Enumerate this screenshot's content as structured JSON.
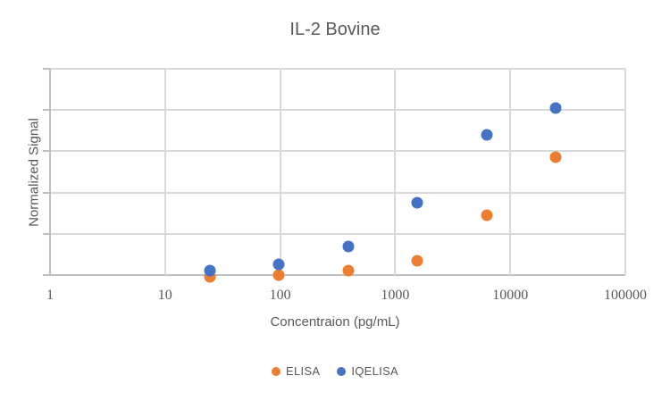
{
  "chart_data": {
    "type": "scatter",
    "title": "IL-2 Bovine",
    "xlabel": "Concentraion (pg/mL)",
    "ylabel": "Normalized Signal",
    "x_scale": "log10",
    "xlim": [
      1,
      100000
    ],
    "x_tick_labels": [
      "1",
      "10",
      "100",
      "1000",
      "10000",
      "100000"
    ],
    "ylim": [
      0,
      1
    ],
    "y_divisions": 5,
    "y_tick_labels_visible": false,
    "grid": true,
    "legend_position": "bottom-center",
    "colors": {
      "gridline": "#D9D9D9",
      "axis": "#BFBFBF",
      "text": "#595959",
      "background": "#FFFFFF"
    },
    "series": [
      {
        "name": "ELISA",
        "color": "#ED7D31",
        "points": [
          {
            "x": 24.4,
            "y": -0.01
          },
          {
            "x": 97.7,
            "y": 0.0
          },
          {
            "x": 390.6,
            "y": 0.02
          },
          {
            "x": 1562.5,
            "y": 0.07
          },
          {
            "x": 6250,
            "y": 0.29
          },
          {
            "x": 25000,
            "y": 0.57
          }
        ]
      },
      {
        "name": "IQELISA",
        "color": "#4472C4",
        "points": [
          {
            "x": 24.4,
            "y": 0.02
          },
          {
            "x": 97.7,
            "y": 0.05
          },
          {
            "x": 390.6,
            "y": 0.14
          },
          {
            "x": 1562.5,
            "y": 0.35
          },
          {
            "x": 6250,
            "y": 0.68
          },
          {
            "x": 25000,
            "y": 0.81
          }
        ]
      }
    ]
  }
}
